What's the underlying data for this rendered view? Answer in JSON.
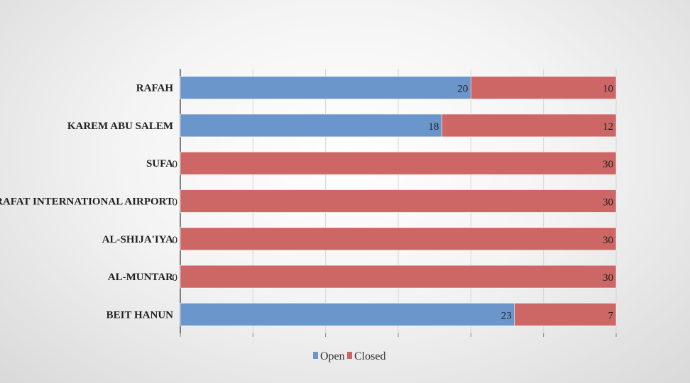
{
  "chart_data": {
    "type": "bar",
    "orientation": "horizontal",
    "stacked": true,
    "categories": [
      "RAFAH",
      "KAREM ABU SALEM",
      "SUFA",
      "YASSER ARAFAT INTERNATIONAL AIRPORT",
      "AL-SHIJA'IYA",
      "AL-MUNTAR",
      "BEIT HANUN"
    ],
    "series": [
      {
        "name": "Open",
        "color": "#6a96cc",
        "values": [
          20,
          18,
          0,
          0,
          0,
          0,
          23
        ]
      },
      {
        "name": "Closed",
        "color": "#cd6766",
        "values": [
          10,
          12,
          30,
          30,
          30,
          30,
          7
        ]
      }
    ],
    "xlim": [
      0,
      30
    ],
    "title": "",
    "xlabel": "",
    "ylabel": "",
    "grid": "vertical",
    "legend_position": "bottom",
    "data_labels": true
  }
}
